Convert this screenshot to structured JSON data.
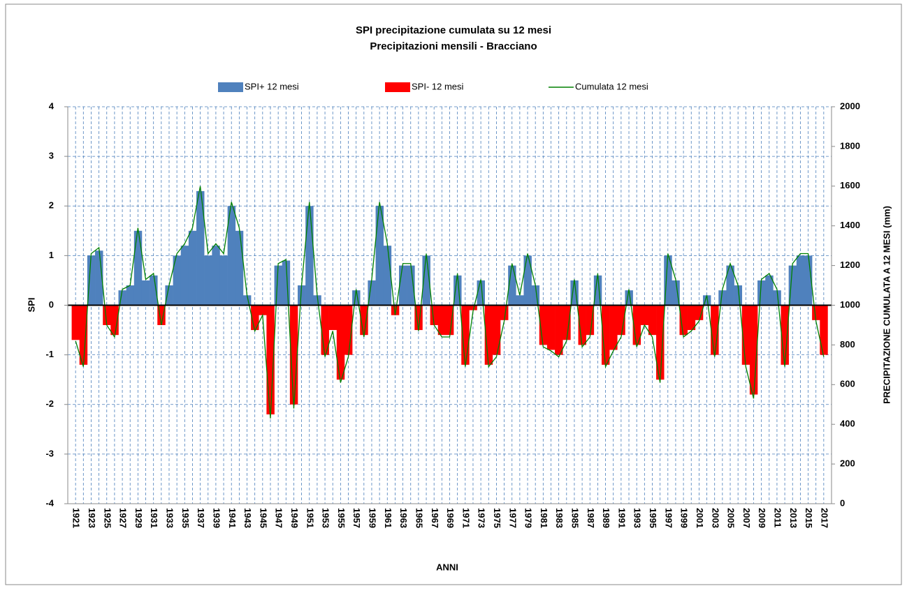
{
  "chart_data": {
    "type": "spi",
    "title": "SPI precipitazione cumulata su 12 mesi",
    "subtitle": "Precipitazioni mensili - Bracciano",
    "x_label": "ANNI",
    "y_label": "SPI",
    "y2_label": "PRECIPITAZIONE CUMULATA A 12 MESI (mm)",
    "x": [
      1921,
      1922,
      1923,
      1924,
      1925,
      1926,
      1927,
      1928,
      1929,
      1930,
      1931,
      1932,
      1933,
      1934,
      1935,
      1936,
      1937,
      1938,
      1939,
      1940,
      1941,
      1942,
      1943,
      1944,
      1945,
      1946,
      1947,
      1948,
      1949,
      1950,
      1951,
      1952,
      1953,
      1954,
      1955,
      1956,
      1957,
      1958,
      1959,
      1960,
      1961,
      1962,
      1963,
      1964,
      1965,
      1966,
      1967,
      1968,
      1969,
      1970,
      1971,
      1972,
      1973,
      1974,
      1975,
      1976,
      1977,
      1978,
      1979,
      1980,
      1981,
      1982,
      1983,
      1984,
      1985,
      1986,
      1987,
      1988,
      1989,
      1990,
      1991,
      1992,
      1993,
      1994,
      1995,
      1996,
      1997,
      1998,
      1999,
      2000,
      2001,
      2002,
      2003,
      2004,
      2005,
      2006,
      2007,
      2008,
      2009,
      2010,
      2011,
      2012,
      2013,
      2014,
      2015,
      2016,
      2017
    ],
    "series": [
      {
        "name": "SPI+ 12 mesi",
        "color": "#4f81bd",
        "kind": "area",
        "values": [
          null,
          null,
          1.0,
          1.1,
          null,
          null,
          0.3,
          0.4,
          1.5,
          0.5,
          0.6,
          null,
          0.4,
          1.0,
          1.2,
          1.5,
          2.3,
          1.0,
          1.2,
          1.0,
          2.0,
          1.5,
          0.2,
          null,
          null,
          null,
          0.8,
          0.9,
          null,
          0.4,
          2.0,
          0.2,
          null,
          null,
          null,
          null,
          0.3,
          null,
          0.5,
          2.0,
          1.2,
          null,
          0.8,
          0.8,
          null,
          1.0,
          null,
          null,
          null,
          0.6,
          null,
          null,
          0.5,
          null,
          null,
          null,
          0.8,
          0.2,
          1.0,
          0.4,
          null,
          null,
          null,
          null,
          0.5,
          null,
          null,
          0.6,
          null,
          null,
          null,
          0.3,
          null,
          null,
          null,
          null,
          1.0,
          0.5,
          null,
          null,
          null,
          0.2,
          null,
          0.3,
          0.8,
          0.4,
          null,
          null,
          0.5,
          0.6,
          0.3,
          null,
          0.8,
          1.0,
          1.0,
          null,
          null
        ]
      },
      {
        "name": "SPI- 12 mesi",
        "color": "#ff0000",
        "kind": "area",
        "values": [
          -0.7,
          -1.2,
          null,
          null,
          -0.4,
          -0.6,
          null,
          null,
          null,
          null,
          null,
          -0.4,
          null,
          null,
          null,
          null,
          null,
          null,
          null,
          null,
          null,
          null,
          null,
          -0.5,
          -0.2,
          -2.2,
          null,
          null,
          -2.0,
          null,
          null,
          null,
          -1.0,
          -0.5,
          -1.5,
          -1.0,
          null,
          -0.6,
          null,
          null,
          null,
          -0.2,
          null,
          null,
          -0.5,
          null,
          -0.4,
          -0.6,
          -0.6,
          null,
          -1.2,
          -0.1,
          null,
          -1.2,
          -1.0,
          -0.3,
          null,
          null,
          null,
          null,
          -0.8,
          -0.9,
          -1.0,
          -0.7,
          null,
          -0.8,
          -0.6,
          null,
          -1.2,
          -0.9,
          -0.6,
          null,
          -0.8,
          -0.4,
          -0.6,
          -1.5,
          null,
          null,
          -0.6,
          -0.5,
          -0.3,
          null,
          -1.0,
          null,
          null,
          null,
          -1.2,
          -1.8,
          null,
          null,
          null,
          -1.2,
          null,
          null,
          null,
          -0.3,
          -1.0
        ]
      },
      {
        "name": "Cumulata 12 mesi",
        "color": "#008000",
        "kind": "line",
        "axis": "y2",
        "values": [
          820,
          690,
          1260,
          1290,
          900,
          840,
          1080,
          1100,
          1390,
          1130,
          1160,
          900,
          1100,
          1260,
          1310,
          1390,
          1600,
          1260,
          1310,
          1260,
          1520,
          1390,
          1050,
          870,
          950,
          430,
          1210,
          1230,
          480,
          1100,
          1520,
          1050,
          740,
          870,
          610,
          740,
          1080,
          840,
          1130,
          1520,
          1310,
          950,
          1210,
          1210,
          870,
          1260,
          900,
          840,
          840,
          1160,
          690,
          970,
          1130,
          690,
          740,
          920,
          1210,
          1050,
          1260,
          1100,
          790,
          770,
          740,
          820,
          1130,
          790,
          840,
          1160,
          690,
          770,
          840,
          1080,
          790,
          900,
          840,
          610,
          1260,
          1130,
          840,
          870,
          920,
          1050,
          740,
          1080,
          1210,
          1100,
          690,
          530,
          1130,
          1160,
          1080,
          690,
          1210,
          1260,
          1260,
          920,
          740
        ]
      }
    ],
    "xlim": [
      1920,
      2018
    ],
    "xticks": [
      1921,
      1923,
      1925,
      1927,
      1929,
      1931,
      1933,
      1935,
      1937,
      1939,
      1941,
      1943,
      1945,
      1947,
      1949,
      1951,
      1953,
      1955,
      1957,
      1959,
      1961,
      1963,
      1965,
      1967,
      1969,
      1971,
      1973,
      1975,
      1977,
      1979,
      1981,
      1983,
      1985,
      1987,
      1989,
      1991,
      1993,
      1995,
      1997,
      1999,
      2001,
      2003,
      2005,
      2007,
      2009,
      2011,
      2013,
      2015,
      2017
    ],
    "ylim": [
      -4,
      4
    ],
    "yticks": [
      -4,
      -3,
      -2,
      -1,
      0,
      1,
      2,
      3,
      4
    ],
    "y2lim": [
      0,
      2000
    ],
    "y2ticks": [
      0,
      200,
      400,
      600,
      800,
      1000,
      1200,
      1400,
      1600,
      1800,
      2000
    ],
    "grid": true,
    "legend": "top"
  }
}
